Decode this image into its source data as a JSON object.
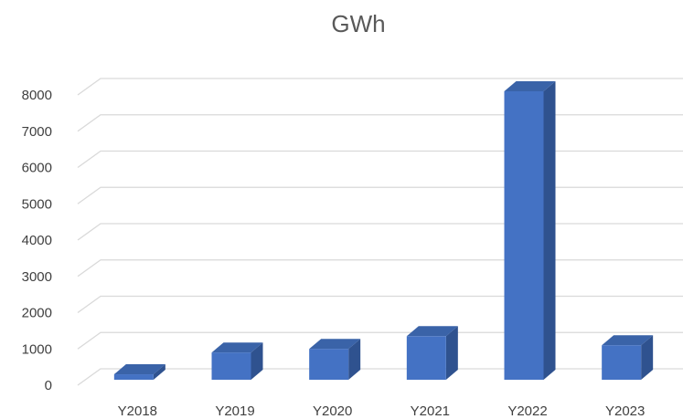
{
  "chart_data": {
    "type": "bar",
    "title": "GWh",
    "xlabel": "",
    "ylabel": "",
    "categories": [
      "Y2018",
      "Y2019",
      "Y2020",
      "Y2021",
      "Y2022",
      "Y2023"
    ],
    "values": [
      150,
      750,
      850,
      1200,
      7950,
      950
    ],
    "ylim": [
      0,
      8000
    ],
    "yticks": [
      "0",
      "1000",
      "2000",
      "3000",
      "4000",
      "5000",
      "6000",
      "7000",
      "8000"
    ],
    "grid": true,
    "legend": "none",
    "style": "3d-column",
    "colors": {
      "bar_front": "#4472c4",
      "bar_top": "#3a63a8",
      "bar_side": "#2f528f",
      "grid": "#d9d9d9"
    }
  }
}
